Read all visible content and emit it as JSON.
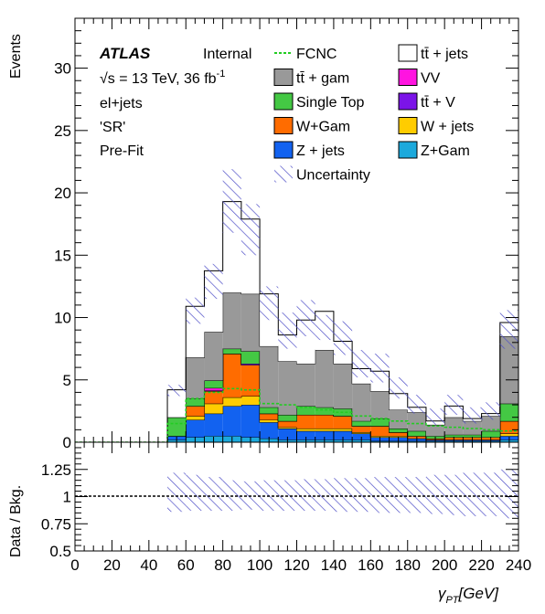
{
  "chart_data": {
    "type": "bar",
    "subtype": "stacked-histogram-with-ratio-panel",
    "x_edges": [
      0,
      10,
      20,
      30,
      40,
      50,
      60,
      70,
      80,
      90,
      100,
      110,
      120,
      130,
      140,
      150,
      160,
      170,
      180,
      190,
      200,
      210,
      220,
      230,
      240
    ],
    "xlim": [
      0,
      240
    ],
    "xticks": [
      0,
      20,
      40,
      60,
      80,
      100,
      120,
      140,
      160,
      180,
      200,
      220,
      240
    ],
    "xlabel": "γ_PT [GeV]",
    "xlabel_main": "γ",
    "xlabel_sub": "PT",
    "xlabel_unit": "[GeV]",
    "ylabel": "Events",
    "ylim": [
      0,
      34
    ],
    "yticks": [
      0,
      5,
      10,
      15,
      20,
      25,
      30
    ],
    "grid": false,
    "ratio_panel": {
      "ylabel": "Data / Bkg.",
      "ylim": [
        0.5,
        1.5
      ],
      "yticks": [
        0.5,
        0.75,
        1,
        1.25
      ],
      "ytick_labels": [
        "0.5",
        "0.75",
        "1",
        "1.25"
      ],
      "reference_line": 1,
      "unc_from_bin": 5,
      "unc_up": [
        1.22,
        1.2,
        1.18,
        1.15,
        1.14,
        1.15,
        1.15,
        1.16,
        1.16,
        1.17,
        1.17,
        1.18,
        1.18,
        1.18,
        1.2,
        1.2,
        1.22,
        1.22,
        1.25
      ],
      "unc_down": [
        0.86,
        0.87,
        0.87,
        0.87,
        0.88,
        0.87,
        0.87,
        0.87,
        0.87,
        0.86,
        0.86,
        0.85,
        0.85,
        0.85,
        0.84,
        0.83,
        0.82,
        0.82,
        0.8
      ]
    },
    "legend_position": "top-right",
    "labels": {
      "atlas": "ATLAS",
      "internal": "Internal",
      "energy_prefix": "√s = 13 TeV, 36 fb",
      "energy_sup": "-1",
      "channel": "el+jets",
      "region": "'SR'",
      "stage": "Pre-Fit"
    },
    "legend": [
      {
        "label": "FCNC",
        "kind": "line"
      },
      {
        "label": "tt̄ + jets",
        "kind": "box"
      },
      {
        "label": "tt̄ +  gam",
        "kind": "box"
      },
      {
        "label": "VV",
        "kind": "box"
      },
      {
        "label": "Single Top",
        "kind": "box"
      },
      {
        "label": "tt̄ + V",
        "kind": "box"
      },
      {
        "label": "W+Gam",
        "kind": "box"
      },
      {
        "label": "W + jets",
        "kind": "box"
      },
      {
        "label": "Z + jets",
        "kind": "box"
      },
      {
        "label": "Z+Gam",
        "kind": "box"
      },
      {
        "label": "Uncertainty",
        "kind": "hatch"
      }
    ],
    "series": [
      {
        "name": "Z+Gam",
        "color": "#1ca9dc",
        "values": [
          0,
          0,
          0,
          0,
          0,
          0.2,
          0.4,
          0.5,
          0.5,
          0.4,
          0.3,
          0.2,
          0.2,
          0.2,
          0.2,
          0.2,
          0.1,
          0.1,
          0.1,
          0.1,
          0.1,
          0.1,
          0.1,
          0.2
        ]
      },
      {
        "name": "Z + jets",
        "color": "#1262f0",
        "values": [
          0,
          0,
          0,
          0,
          0,
          0.3,
          1.4,
          1.8,
          2.4,
          2.6,
          1.3,
          0.9,
          0.7,
          0.7,
          0.7,
          0.5,
          0.3,
          0.3,
          0.2,
          0.1,
          0.1,
          0.1,
          0.1,
          0.3
        ]
      },
      {
        "name": "W + jets",
        "color": "#ffcc00",
        "values": [
          0,
          0,
          0,
          0,
          0,
          0,
          0.3,
          0.8,
          0.7,
          0.7,
          0.2,
          0.1,
          0.2,
          0.2,
          0.2,
          0.1,
          0.1,
          0.1,
          0,
          0,
          0,
          0,
          0,
          0.2
        ]
      },
      {
        "name": "W+Gam",
        "color": "#ff6c00",
        "values": [
          0,
          0,
          0,
          0,
          0,
          0,
          0.8,
          1.0,
          3.5,
          2.5,
          0.5,
          0.5,
          1.1,
          1.1,
          1.0,
          0.5,
          0.8,
          0.3,
          0.2,
          0.1,
          0.2,
          0.2,
          0.2,
          1.0
        ]
      },
      {
        "name": "tt̄ + V",
        "color": "#7b14e8",
        "values": [
          0,
          0,
          0,
          0,
          0,
          0,
          0,
          0.05,
          0,
          0.1,
          0,
          0,
          0,
          0,
          0,
          0,
          0,
          0,
          0,
          0,
          0,
          0,
          0,
          0
        ]
      },
      {
        "name": "VV",
        "color": "#ff14e0",
        "values": [
          0,
          0,
          0,
          0,
          0,
          0,
          0,
          0.2,
          0,
          0,
          0,
          0,
          0,
          0,
          0,
          0,
          0,
          0,
          0,
          0,
          0,
          0,
          0,
          0
        ]
      },
      {
        "name": "Single Top",
        "color": "#44c844",
        "values": [
          0,
          0,
          0,
          0,
          0,
          1.5,
          0.6,
          0.6,
          0.4,
          1.0,
          0.5,
          0.5,
          0.7,
          0.6,
          0.6,
          0.4,
          0.6,
          0.3,
          0.4,
          0.2,
          0.2,
          0.2,
          0.5,
          1.4
        ]
      },
      {
        "name": "tt̄ +  gam",
        "color": "#999999",
        "values": [
          0,
          0,
          0,
          0,
          0,
          0,
          3.3,
          3.9,
          4.5,
          4.6,
          4.9,
          4.3,
          3.4,
          4.6,
          3.6,
          3.0,
          2.2,
          1.5,
          1.5,
          0.9,
          1.4,
          1.1,
          1.2,
          5.4
        ]
      },
      {
        "name": "tt̄ + jets",
        "color": "#ffffff",
        "values": [
          0,
          0,
          0,
          0,
          0,
          2.2,
          4.1,
          4.9,
          7.3,
          6.0,
          4.2,
          2.1,
          3.5,
          3.1,
          1.8,
          1.2,
          1.6,
          1.3,
          0.4,
          0.3,
          0.9,
          0.2,
          0.2,
          1.1
        ]
      }
    ],
    "fcnc": {
      "name": "FCNC",
      "color": "#22cc22",
      "values": [
        0,
        0,
        0,
        0,
        0,
        1.5,
        3.5,
        4.0,
        4.3,
        4.2,
        3.1,
        3.0,
        2.8,
        2.6,
        2.4,
        2.1,
        1.9,
        1.7,
        1.5,
        1.3,
        1.2,
        1.1,
        1.0,
        0.9
      ]
    },
    "uncertainty": {
      "up": [
        0,
        0,
        0,
        0,
        0,
        4.6,
        11.6,
        14.3,
        21.9,
        19.1,
        12.5,
        10.4,
        11.4,
        10.2,
        9.7,
        7.4,
        7.1,
        5.2,
        3.8,
        2.7,
        3.8,
        2.8,
        3.2,
        10.6
      ],
      "down": [
        0,
        0,
        0,
        0,
        0,
        3.7,
        9.5,
        11.5,
        16.8,
        15.0,
        9.8,
        7.5,
        8.5,
        8.2,
        7.0,
        5.2,
        4.8,
        3.5,
        2.3,
        1.4,
        2.2,
        1.5,
        1.8,
        7.5
      ]
    }
  }
}
